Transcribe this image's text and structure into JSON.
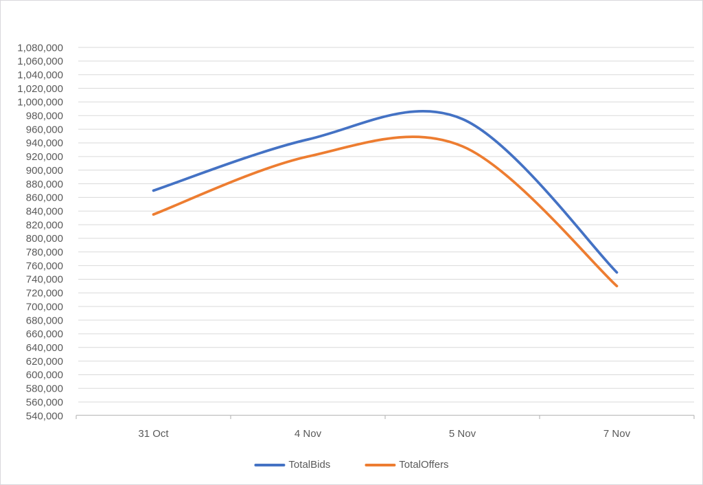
{
  "chart_data": {
    "type": "line",
    "smooth": true,
    "title": "",
    "xlabel": "",
    "ylabel": "",
    "categories": [
      "31 Oct",
      "4 Nov",
      "5 Nov",
      "7 Nov"
    ],
    "series": [
      {
        "name": "TotalBids",
        "color": "#4472C4",
        "values": [
          870000,
          945000,
          975000,
          750000
        ]
      },
      {
        "name": "TotalOffers",
        "color": "#ED7D31",
        "values": [
          835000,
          920000,
          935000,
          730000
        ]
      }
    ],
    "ylim": [
      540000,
      1080000
    ],
    "ytick_step": 20000,
    "ytick_format": "thousands-comma",
    "grid": true,
    "gridline_color": "#D9D9D9",
    "axis_line_color": "#BFBFBF",
    "label_color": "#595959",
    "legend_position": "bottom",
    "line_width": 3.75
  }
}
